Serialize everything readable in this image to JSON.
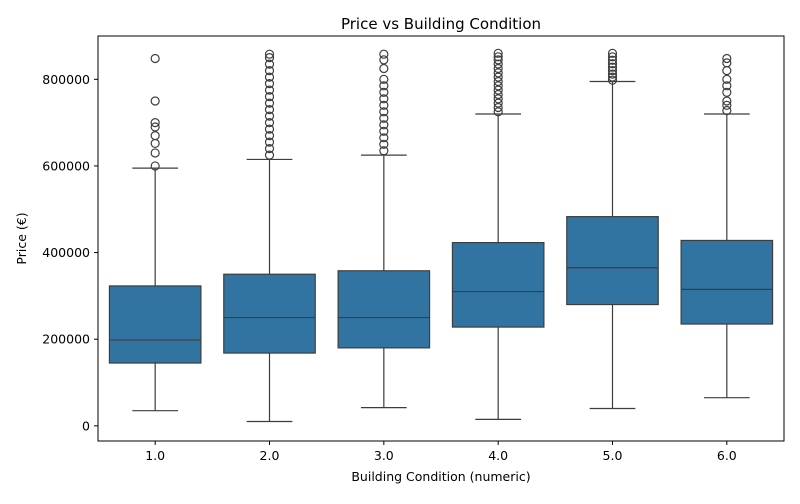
{
  "chart_data": {
    "type": "box",
    "title": "Price vs Building Condition",
    "xlabel": "Building Condition (numeric)",
    "ylabel": "Price (€)",
    "categories": [
      "1.0",
      "2.0",
      "3.0",
      "4.0",
      "5.0",
      "6.0"
    ],
    "ylim": [
      -35000,
      900000
    ],
    "yticks": [
      0,
      200000,
      400000,
      600000,
      800000
    ],
    "yticklabels": [
      "0",
      "200000",
      "400000",
      "600000",
      "800000"
    ],
    "grid": false,
    "legend": "none",
    "box_color": "#3274a1",
    "boxes": [
      {
        "category": "1.0",
        "whisker_low": 35000,
        "q1": 145000,
        "median": 198000,
        "q3": 323000,
        "whisker_high": 595000,
        "outliers": [
          600000,
          630000,
          652000,
          670000,
          690000,
          700000,
          750000,
          848000
        ]
      },
      {
        "category": "2.0",
        "whisker_low": 10000,
        "q1": 168000,
        "median": 250000,
        "q3": 350000,
        "whisker_high": 615000,
        "outliers": [
          625000,
          640000,
          655000,
          670000,
          685000,
          700000,
          715000,
          730000,
          745000,
          760000,
          775000,
          790000,
          805000,
          820000,
          835000,
          850000,
          858000
        ]
      },
      {
        "category": "3.0",
        "whisker_low": 42000,
        "q1": 180000,
        "median": 250000,
        "q3": 358000,
        "whisker_high": 625000,
        "outliers": [
          635000,
          650000,
          665000,
          680000,
          695000,
          710000,
          725000,
          740000,
          755000,
          770000,
          785000,
          800000,
          825000,
          845000,
          858000
        ]
      },
      {
        "category": "4.0",
        "whisker_low": 15000,
        "q1": 228000,
        "median": 310000,
        "q3": 423000,
        "whisker_high": 720000,
        "outliers": [
          725000,
          735000,
          745000,
          755000,
          765000,
          775000,
          785000,
          795000,
          805000,
          815000,
          825000,
          835000,
          845000,
          852000,
          860000
        ]
      },
      {
        "category": "5.0",
        "whisker_low": 40000,
        "q1": 280000,
        "median": 365000,
        "q3": 483000,
        "whisker_high": 795000,
        "outliers": [
          798000,
          805000,
          812000,
          820000,
          828000,
          836000,
          844000,
          852000,
          860000
        ]
      },
      {
        "category": "6.0",
        "whisker_low": 65000,
        "q1": 235000,
        "median": 315000,
        "q3": 428000,
        "whisker_high": 720000,
        "outliers": [
          728000,
          740000,
          750000,
          770000,
          785000,
          800000,
          820000,
          838000,
          848000
        ]
      }
    ]
  }
}
